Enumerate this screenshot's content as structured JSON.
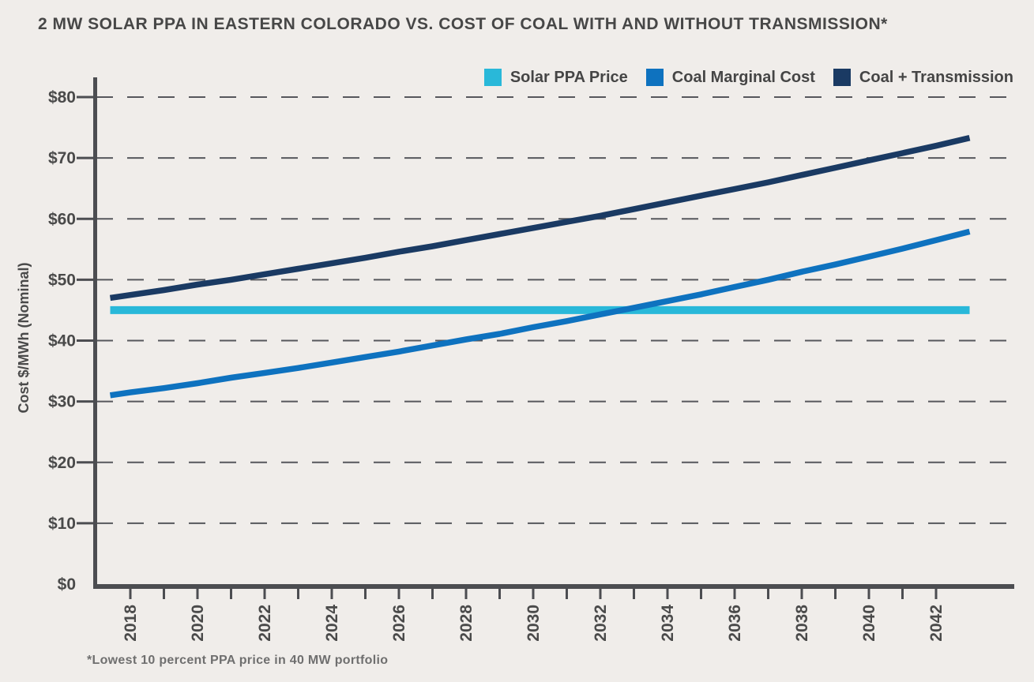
{
  "chart_data": {
    "type": "line",
    "title": "2 MW SOLAR PPA IN EASTERN COLORADO VS. COST OF COAL WITH AND WITHOUT TRANSMISSION*",
    "footnote": "*Lowest 10 percent PPA price in 40 MW portfolio",
    "ylabel": "Cost $/MWh (Nominal)",
    "xlabel": "",
    "ylim": [
      0,
      80
    ],
    "yticks": [
      0,
      10,
      20,
      30,
      40,
      50,
      60,
      70,
      80
    ],
    "ytick_labels": [
      "$0",
      "$10",
      "$20",
      "$30",
      "$40",
      "$50",
      "$60",
      "$70",
      "$80"
    ],
    "xticks": [
      2018,
      2019,
      2020,
      2021,
      2022,
      2023,
      2024,
      2025,
      2026,
      2027,
      2028,
      2029,
      2030,
      2031,
      2032,
      2033,
      2034,
      2035,
      2036,
      2037,
      2038,
      2039,
      2040,
      2041,
      2042
    ],
    "xtick_labels": [
      "2018",
      "2020",
      "2022",
      "2024",
      "2026",
      "2028",
      "2030",
      "2032",
      "2034",
      "2036",
      "2038",
      "2040",
      "2042"
    ],
    "x_plot_range": [
      2017.4,
      2043
    ],
    "grid": "horizontal-dashed",
    "legend_position": "top-right",
    "colors": {
      "background": "#f0edea",
      "axis": "#4c4d51",
      "grid": "#56575c",
      "text": "#4a4a4a"
    },
    "x": [
      2017,
      2018,
      2019,
      2020,
      2021,
      2022,
      2023,
      2024,
      2025,
      2026,
      2027,
      2028,
      2029,
      2030,
      2031,
      2032,
      2033,
      2034,
      2035,
      2036,
      2037,
      2038,
      2039,
      2040,
      2041,
      2042,
      2043
    ],
    "series": [
      {
        "name": "Solar PPA Price",
        "color": "#29b8d9",
        "width": 10,
        "values": [
          45,
          45,
          45,
          45,
          45,
          45,
          45,
          45,
          45,
          45,
          45,
          45,
          45,
          45,
          45,
          45,
          45,
          45,
          45,
          45,
          45,
          45,
          45,
          45,
          45,
          45,
          45
        ]
      },
      {
        "name": "Coal Marginal Cost",
        "color": "#0e72bf",
        "width": 7.5,
        "values": [
          30.7,
          31.5,
          32.2,
          33.0,
          33.9,
          34.7,
          35.5,
          36.4,
          37.3,
          38.2,
          39.2,
          40.2,
          41.1,
          42.2,
          43.2,
          44.3,
          45.4,
          46.5,
          47.6,
          48.8,
          50.0,
          51.3,
          52.5,
          53.8,
          55.1,
          56.5,
          57.9
        ]
      },
      {
        "name": "Coal + Transmission",
        "color": "#1a3a63",
        "width": 7.5,
        "values": [
          46.7,
          47.5,
          48.3,
          49.2,
          50.0,
          50.9,
          51.8,
          52.7,
          53.6,
          54.6,
          55.5,
          56.5,
          57.5,
          58.5,
          59.5,
          60.5,
          61.6,
          62.7,
          63.8,
          64.9,
          66.0,
          67.2,
          68.4,
          69.6,
          70.8,
          72.0,
          73.3
        ]
      }
    ]
  }
}
